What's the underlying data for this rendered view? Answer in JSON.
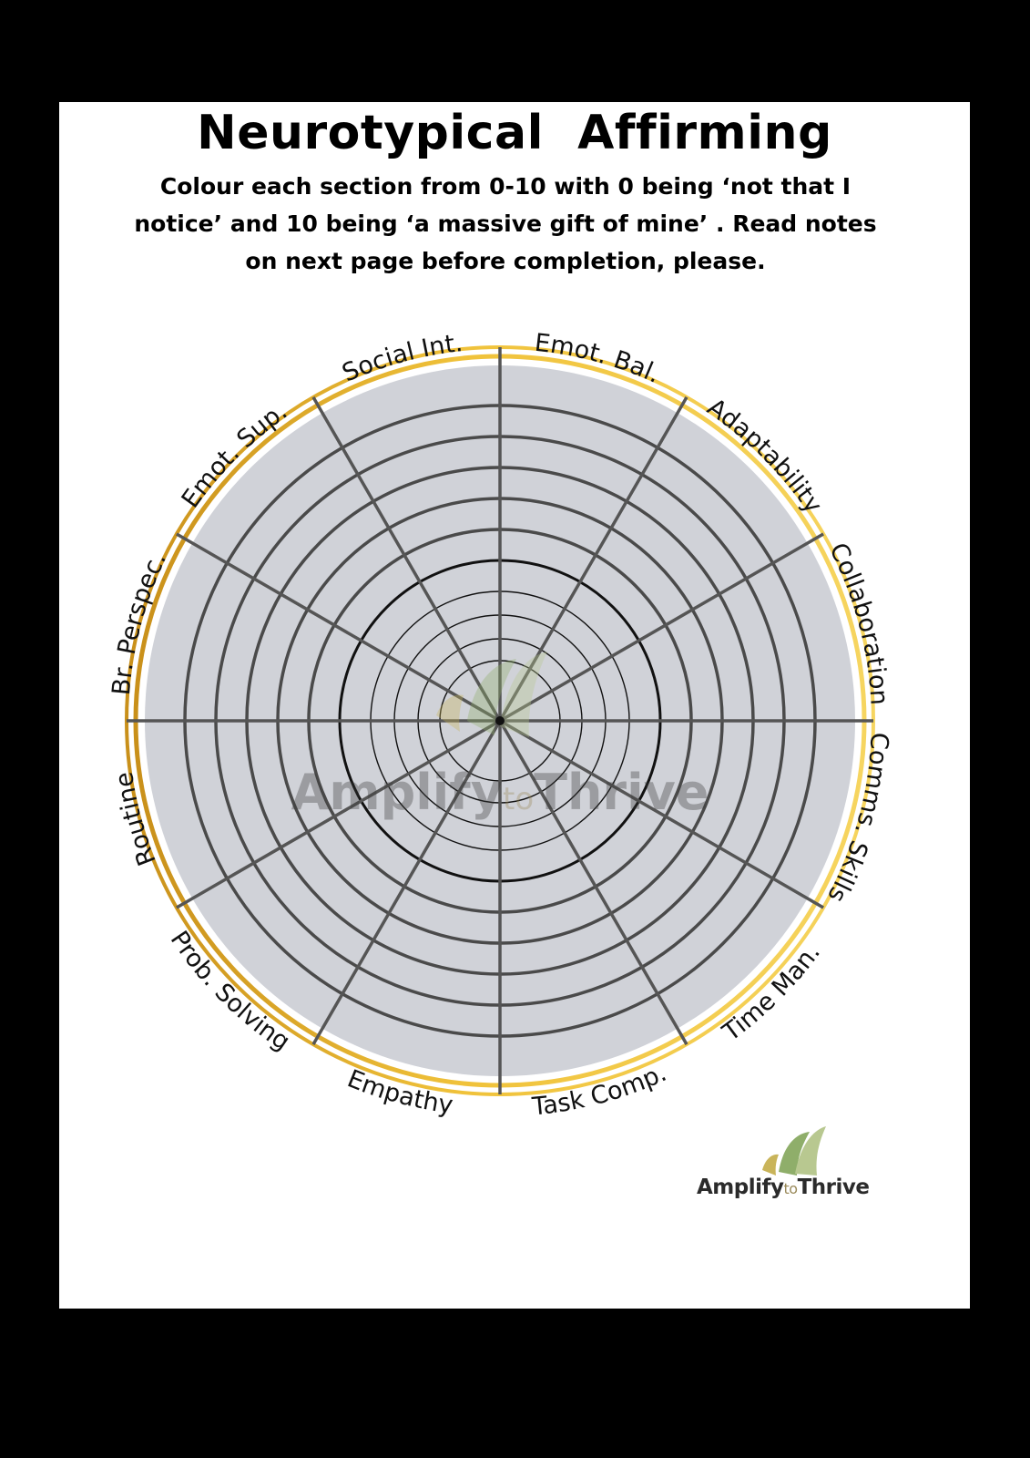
{
  "title": "Neurotypical  Affirming",
  "instructions": "Colour each section from 0-10 with 0 being ‘not that I notice’ and 10 being ‘a massive gift of mine’ . Read notes on next page before completion, please.",
  "wheel": {
    "segments": [
      "Emot. Bal.",
      "Adaptability",
      "Collaboration",
      "Comms. Skills",
      "Time Man.",
      "Task Comp.",
      "Empathy",
      "Prob. Solving",
      "Routine",
      "Br. Perspec.",
      "Emot. Sup.",
      "Social Int."
    ],
    "scale_min": 0,
    "scale_max": 10,
    "fill_color": "#d0d2d8",
    "ring_color": "#e8b81f",
    "ring_dark_color": "#c99a1a",
    "line_color": "#555555"
  },
  "watermark": {
    "brand_main": "Amplify",
    "brand_small": "to",
    "brand_end": "Thrive",
    "icon": "amplify-wave-logo-icon"
  },
  "logo": {
    "brand_main": "Amplify",
    "brand_small": "to",
    "brand_end": "Thrive",
    "icon": "amplify-wave-logo-icon"
  }
}
